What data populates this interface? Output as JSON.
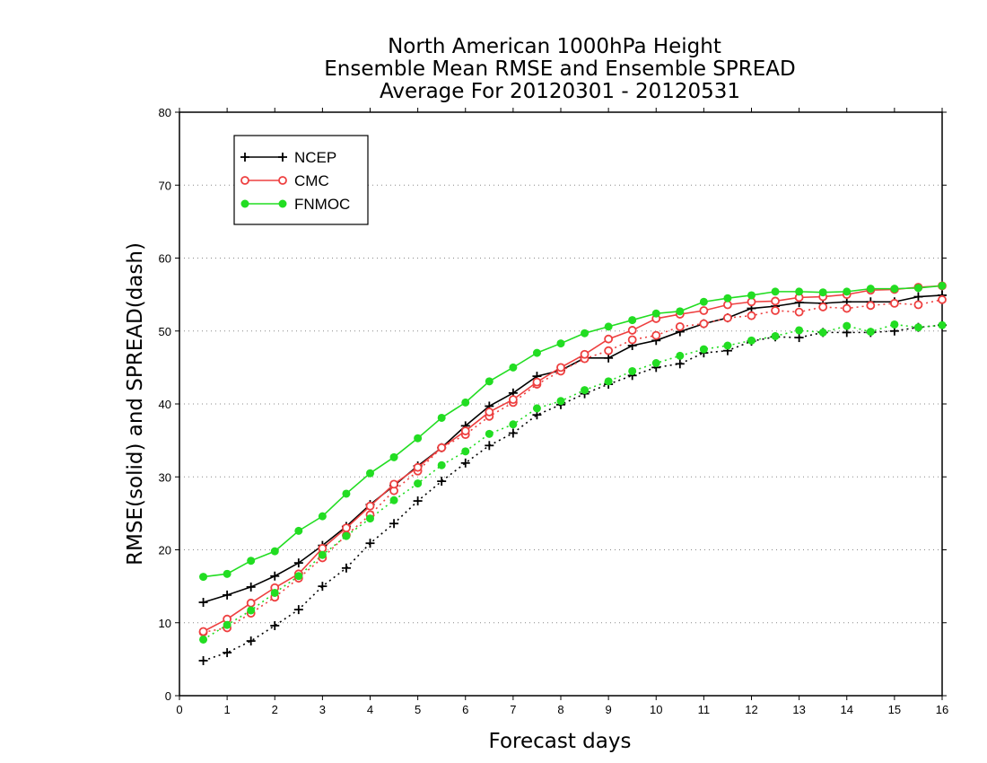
{
  "chart_data": {
    "type": "line",
    "title_lines": [
      "North American 1000hPa Height",
      "Ensemble Mean RMSE and Ensemble SPREAD",
      "Average For 20120301 - 20120531"
    ],
    "xlabel": "Forecast days",
    "ylabel": "RMSE(solid) and SPREAD(dash)",
    "xlim": [
      0,
      16
    ],
    "ylim": [
      0,
      80
    ],
    "x_ticks": [
      "0",
      "1",
      "2",
      "3",
      "4",
      "5",
      "6",
      "7",
      "8",
      "9",
      "10",
      "11",
      "12",
      "13",
      "14",
      "15",
      "16"
    ],
    "y_ticks": [
      "0",
      "10",
      "20",
      "30",
      "40",
      "50",
      "60",
      "70",
      "80"
    ],
    "grid": "horizontal dotted",
    "legend_position": "top-left",
    "x": [
      0.5,
      1,
      1.5,
      2,
      2.5,
      3,
      3.5,
      4,
      4.5,
      5,
      5.5,
      6,
      6.5,
      7,
      7.5,
      8,
      8.5,
      9,
      9.5,
      10,
      10.5,
      11,
      11.5,
      12,
      12.5,
      13,
      13.5,
      14,
      14.5,
      15,
      15.5,
      16
    ],
    "series": [
      {
        "name": "NCEP",
        "color": "#000000",
        "marker": "plus",
        "rmse": [
          12.8,
          13.8,
          14.9,
          16.4,
          18.2,
          20.6,
          23.2,
          26.2,
          28.8,
          31.5,
          34.0,
          37.0,
          39.7,
          41.5,
          43.8,
          44.6,
          46.3,
          46.3,
          48.0,
          48.7,
          49.9,
          51.0,
          51.8,
          53.1,
          53.4,
          53.9,
          53.8,
          54.0,
          54.0,
          54.0,
          54.7,
          54.9
        ],
        "spread": [
          4.8,
          5.9,
          7.5,
          9.6,
          11.8,
          15.0,
          17.5,
          20.9,
          23.6,
          26.7,
          29.4,
          31.9,
          34.3,
          36.0,
          38.5,
          39.9,
          41.4,
          42.7,
          43.9,
          45.0,
          45.5,
          47.0,
          47.3,
          48.6,
          49.2,
          49.1,
          49.8,
          49.8,
          49.8,
          50.0,
          50.5,
          50.8
        ]
      },
      {
        "name": "CMC",
        "color": "#ee4040",
        "marker": "open-circle",
        "rmse": [
          8.8,
          10.5,
          12.7,
          14.8,
          16.7,
          20.2,
          23.0,
          26.0,
          29.0,
          31.3,
          34.0,
          36.3,
          38.9,
          40.6,
          43.0,
          45.0,
          46.8,
          48.9,
          50.1,
          51.7,
          52.3,
          52.8,
          53.6,
          54.0,
          54.1,
          54.6,
          54.7,
          55.0,
          55.6,
          55.7,
          56.0,
          56.2
        ],
        "spread": [
          8.7,
          9.3,
          11.3,
          13.5,
          16.1,
          18.9,
          22.0,
          24.8,
          28.1,
          30.8,
          34.0,
          35.8,
          38.3,
          40.2,
          42.7,
          44.5,
          46.2,
          47.3,
          48.8,
          49.4,
          50.6,
          51.0,
          51.8,
          52.1,
          52.8,
          52.6,
          53.3,
          53.1,
          53.5,
          53.8,
          53.6,
          54.3
        ]
      },
      {
        "name": "FNMOC",
        "color": "#22dd22",
        "marker": "filled-circle",
        "rmse": [
          16.3,
          16.7,
          18.5,
          19.8,
          22.6,
          24.6,
          27.7,
          30.5,
          32.7,
          35.3,
          38.1,
          40.2,
          43.1,
          45.0,
          47.0,
          48.3,
          49.7,
          50.6,
          51.5,
          52.4,
          52.7,
          54.0,
          54.5,
          54.9,
          55.4,
          55.4,
          55.3,
          55.4,
          55.8,
          55.8,
          55.9,
          56.2
        ],
        "spread": [
          7.7,
          9.7,
          11.7,
          14.1,
          16.4,
          19.3,
          21.9,
          24.3,
          26.8,
          29.1,
          31.6,
          33.5,
          35.9,
          37.2,
          39.4,
          40.4,
          41.9,
          43.1,
          44.5,
          45.6,
          46.6,
          47.5,
          48.0,
          48.7,
          49.3,
          50.1,
          49.8,
          50.7,
          49.9,
          50.9,
          50.5,
          50.8
        ]
      }
    ]
  }
}
